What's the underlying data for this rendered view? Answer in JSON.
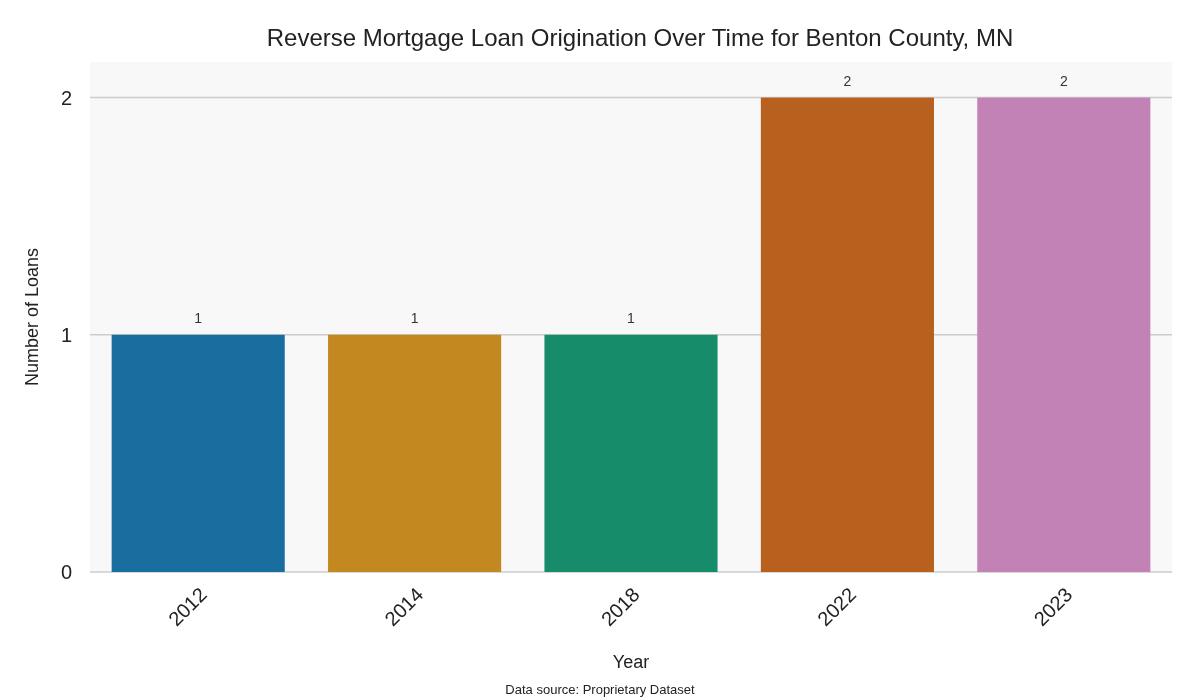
{
  "chart_data": {
    "type": "bar",
    "title": "Reverse Mortgage Loan Origination Over Time for Benton County, MN",
    "xlabel": "Year",
    "ylabel": "Number of Loans",
    "categories": [
      "2012",
      "2014",
      "2018",
      "2022",
      "2023"
    ],
    "values": [
      1,
      1,
      1,
      2,
      2
    ],
    "colors": [
      "#1a6e9f",
      "#c38820",
      "#178c6b",
      "#b8601e",
      "#c382b5"
    ],
    "ylim": [
      0,
      2.15
    ],
    "yticks": [
      0,
      1,
      2
    ],
    "grid": "y",
    "data_labels": true,
    "annotations": [
      "Data source: Proprietary Dataset"
    ]
  }
}
